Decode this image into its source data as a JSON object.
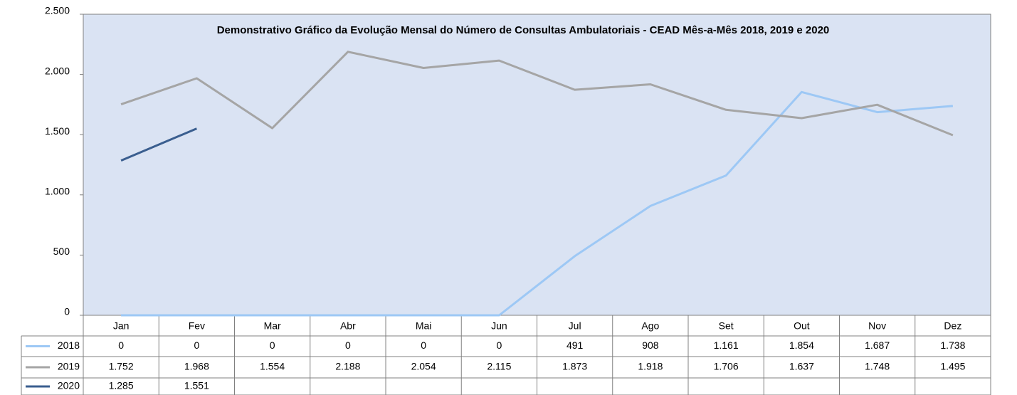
{
  "chart_data": {
    "type": "line",
    "title": "Demonstrativo Gráfico da Evolução Mensal do Número de Consultas Ambulatoriais - CEAD Mês-a-Mês 2018, 2019 e 2020",
    "categories": [
      "Jan",
      "Fev",
      "Mar",
      "Abr",
      "Mai",
      "Jun",
      "Jul",
      "Ago",
      "Set",
      "Out",
      "Nov",
      "Dez"
    ],
    "series": [
      {
        "name": "2018",
        "color": "#9dc8f5",
        "values": [
          0,
          0,
          0,
          0,
          0,
          0,
          491,
          908,
          1161,
          1854,
          1687,
          1738
        ],
        "value_labels": [
          "0",
          "0",
          "0",
          "0",
          "0",
          "0",
          "491",
          "908",
          "1.161",
          "1.854",
          "1.687",
          "1.738"
        ]
      },
      {
        "name": "2019",
        "color": "#a5a5a5",
        "values": [
          1752,
          1968,
          1554,
          2188,
          2054,
          2115,
          1873,
          1918,
          1706,
          1637,
          1748,
          1495
        ],
        "value_labels": [
          "1.752",
          "1.968",
          "1.554",
          "2.188",
          "2.054",
          "2.115",
          "1.873",
          "1.918",
          "1.706",
          "1.637",
          "1.748",
          "1.495"
        ]
      },
      {
        "name": "2020",
        "color": "#3a5e8f",
        "values": [
          1285,
          1551,
          null,
          null,
          null,
          null,
          null,
          null,
          null,
          null,
          null,
          null
        ],
        "value_labels": [
          "1.285",
          "1.551",
          null,
          null,
          null,
          null,
          null,
          null,
          null,
          null,
          null,
          null
        ]
      }
    ],
    "ylim": [
      0,
      2500
    ],
    "yticks": [
      0,
      500,
      {
        "value": 1000,
        "label": "1.000"
      },
      {
        "value": 1500,
        "label": "1.500"
      },
      {
        "value": 2000,
        "label": "2.000"
      },
      {
        "value": 2500,
        "label": "2.500"
      }
    ],
    "grid": false,
    "plot_background": "#dae3f3"
  }
}
